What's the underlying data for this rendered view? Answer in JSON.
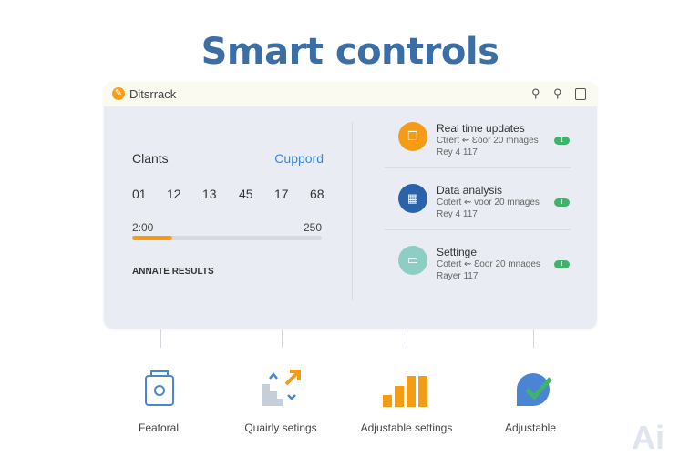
{
  "title": "Smart controls",
  "app": {
    "name": "Ditsrrack",
    "header_icons": [
      "search-icon",
      "zoom-icon",
      "document-icon"
    ]
  },
  "left": {
    "heading": "Clants",
    "link": "Cuppord",
    "numbers": [
      "01",
      "12",
      "13",
      "45",
      "17",
      "68"
    ],
    "range_start": "2:00",
    "range_end": "250",
    "progress": 0.21,
    "results_label": "ANNATE RESULTS"
  },
  "items": [
    {
      "title": "Real time updates",
      "sub": "Ctrert ⇜ Ɛoor 20 mnages",
      "meta": "Rey 4 117",
      "badge": "1",
      "color": "#f59c16",
      "icon": "layers-icon"
    },
    {
      "title": "Data analysis",
      "sub": "Cotert ⇜ voor 20 mnages",
      "meta": "Rey 4 117",
      "badge": "I",
      "color": "#2b63a8",
      "icon": "grid-icon"
    },
    {
      "title": "Settinge",
      "sub": "Cotert ⇜ Ɛoor 20 mnages",
      "meta": "Rayer 117",
      "badge": "I",
      "color": "#8ccdc4",
      "icon": "monitor-icon"
    }
  ],
  "features": [
    {
      "label": "Featoral",
      "icon": "bag-icon"
    },
    {
      "label": "Quairly setings",
      "icon": "arrows-stairs-icon"
    },
    {
      "label": "Adjustable settings",
      "icon": "bar-chart-icon"
    },
    {
      "label": "Adjustable",
      "icon": "check-badge-icon"
    }
  ],
  "watermark": "Ai"
}
